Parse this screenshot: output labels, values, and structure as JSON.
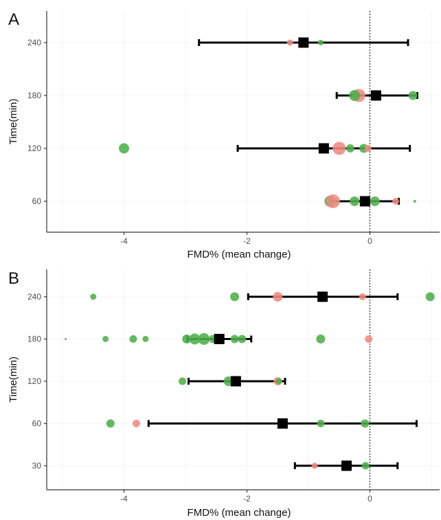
{
  "colors": {
    "green": "#4daf4a",
    "red": "#f08a80",
    "summary": "#000000",
    "refline": "#222222"
  },
  "chart_data": [
    {
      "type": "scatter",
      "panel_label": "A",
      "xlabel": "FMD% (mean change)",
      "ylabel": "Time(min)",
      "xlim": [
        -5.2,
        1.15
      ],
      "x_ticks": [
        -4,
        -2,
        0
      ],
      "x_tick_labels": [
        "-4",
        "-2",
        "0"
      ],
      "y_categories": [
        "60",
        "120",
        "180",
        "240"
      ],
      "reference_line_x": 0,
      "grid": true,
      "summaries": [
        {
          "time": "240",
          "mean": -1.08,
          "lower": -2.78,
          "upper": 0.62
        },
        {
          "time": "180",
          "mean": 0.1,
          "lower": -0.54,
          "upper": 0.77
        },
        {
          "time": "120",
          "mean": -0.75,
          "lower": -2.15,
          "upper": 0.65
        },
        {
          "time": "60",
          "mean": -0.08,
          "lower": -0.65,
          "upper": 0.47
        }
      ],
      "points": [
        {
          "time": "240",
          "x": -1.3,
          "size": 4.5,
          "color": "red"
        },
        {
          "time": "240",
          "x": -0.8,
          "size": 4,
          "color": "green"
        },
        {
          "time": "180",
          "x": -0.18,
          "size": 9.5,
          "color": "red"
        },
        {
          "time": "180",
          "x": -0.25,
          "size": 8,
          "color": "green"
        },
        {
          "time": "180",
          "x": 0.7,
          "size": 6.5,
          "color": "green"
        },
        {
          "time": "120",
          "x": -4.0,
          "size": 7.5,
          "color": "green"
        },
        {
          "time": "120",
          "x": -0.5,
          "size": 9.5,
          "color": "red"
        },
        {
          "time": "120",
          "x": -0.32,
          "size": 6,
          "color": "green"
        },
        {
          "time": "120",
          "x": -0.1,
          "size": 6.5,
          "color": "green"
        },
        {
          "time": "120",
          "x": -0.03,
          "size": 5,
          "color": "red"
        },
        {
          "time": "60",
          "x": -0.65,
          "size": 8,
          "color": "green"
        },
        {
          "time": "60",
          "x": -0.6,
          "size": 10,
          "color": "red"
        },
        {
          "time": "60",
          "x": -0.25,
          "size": 7,
          "color": "green"
        },
        {
          "time": "60",
          "x": 0.08,
          "size": 7,
          "color": "green"
        },
        {
          "time": "60",
          "x": 0.42,
          "size": 5,
          "color": "red"
        },
        {
          "time": "60",
          "x": 0.73,
          "size": 2,
          "color": "green"
        }
      ]
    },
    {
      "type": "scatter",
      "panel_label": "B",
      "xlabel": "FMD% (mean change)",
      "ylabel": "Time(min)",
      "xlim": [
        -5.2,
        1.15
      ],
      "x_ticks": [
        -4,
        -2,
        0
      ],
      "x_tick_labels": [
        "-4",
        "-2",
        "0"
      ],
      "y_categories": [
        "30",
        "60",
        "120",
        "180",
        "240"
      ],
      "reference_line_x": 0,
      "grid": true,
      "summaries": [
        {
          "time": "240",
          "mean": -0.77,
          "lower": -1.98,
          "upper": 0.45
        },
        {
          "time": "180",
          "mean": -2.45,
          "lower": -2.97,
          "upper": -1.93
        },
        {
          "time": "120",
          "mean": -2.18,
          "lower": -2.95,
          "upper": -1.38
        },
        {
          "time": "60",
          "mean": -1.42,
          "lower": -3.6,
          "upper": 0.76
        },
        {
          "time": "30",
          "mean": -0.38,
          "lower": -1.22,
          "upper": 0.45
        }
      ],
      "points": [
        {
          "time": "240",
          "x": -4.5,
          "size": 4.5,
          "color": "green"
        },
        {
          "time": "240",
          "x": -2.2,
          "size": 6.5,
          "color": "green"
        },
        {
          "time": "240",
          "x": -1.5,
          "size": 7,
          "color": "red"
        },
        {
          "time": "240",
          "x": -0.12,
          "size": 5,
          "color": "red"
        },
        {
          "time": "240",
          "x": 0.98,
          "size": 6.5,
          "color": "green"
        },
        {
          "time": "180",
          "x": -4.95,
          "size": 1.5,
          "color": "green"
        },
        {
          "time": "180",
          "x": -4.3,
          "size": 4.5,
          "color": "green"
        },
        {
          "time": "180",
          "x": -3.85,
          "size": 5.5,
          "color": "green"
        },
        {
          "time": "180",
          "x": -3.65,
          "size": 4.5,
          "color": "green"
        },
        {
          "time": "180",
          "x": -2.98,
          "size": 6.5,
          "color": "green"
        },
        {
          "time": "180",
          "x": -2.85,
          "size": 8,
          "color": "green"
        },
        {
          "time": "180",
          "x": -2.7,
          "size": 8.5,
          "color": "green"
        },
        {
          "time": "180",
          "x": -2.55,
          "size": 6,
          "color": "green"
        },
        {
          "time": "180",
          "x": -2.2,
          "size": 6,
          "color": "green"
        },
        {
          "time": "180",
          "x": -2.08,
          "size": 6,
          "color": "green"
        },
        {
          "time": "180",
          "x": -0.8,
          "size": 6.5,
          "color": "green"
        },
        {
          "time": "180",
          "x": -0.02,
          "size": 5.5,
          "color": "red"
        },
        {
          "time": "120",
          "x": -3.05,
          "size": 5.5,
          "color": "green"
        },
        {
          "time": "120",
          "x": -2.3,
          "size": 7,
          "color": "green"
        },
        {
          "time": "120",
          "x": -1.5,
          "size": 6,
          "color": "red"
        },
        {
          "time": "120",
          "x": -1.48,
          "size": 4.5,
          "color": "green"
        },
        {
          "time": "60",
          "x": -4.22,
          "size": 6,
          "color": "green"
        },
        {
          "time": "60",
          "x": -3.8,
          "size": 5.5,
          "color": "red"
        },
        {
          "time": "60",
          "x": -0.8,
          "size": 5.5,
          "color": "green"
        },
        {
          "time": "60",
          "x": -0.08,
          "size": 6,
          "color": "green"
        },
        {
          "time": "30",
          "x": -0.9,
          "size": 4.5,
          "color": "red"
        },
        {
          "time": "30",
          "x": -0.07,
          "size": 5.5,
          "color": "green"
        }
      ]
    }
  ]
}
